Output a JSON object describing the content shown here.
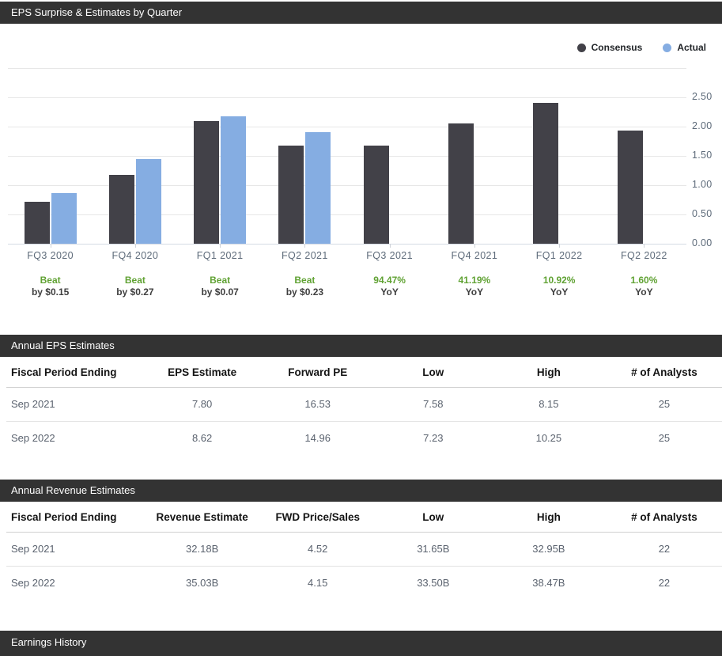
{
  "chart": {
    "section_title": "EPS Surprise & Estimates by Quarter"
  },
  "chart_data": {
    "type": "bar",
    "title": "EPS Surprise & Estimates by Quarter",
    "categories": [
      "FQ3 2020",
      "FQ4 2020",
      "FQ1 2021",
      "FQ2 2021",
      "FQ3 2021",
      "FQ4 2021",
      "FQ1 2022",
      "FQ2 2022"
    ],
    "series": [
      {
        "name": "Consensus",
        "color": "#424148",
        "values": [
          0.71,
          1.18,
          2.1,
          1.67,
          1.67,
          2.05,
          2.41,
          1.93
        ]
      },
      {
        "name": "Actual",
        "color": "#85ade2",
        "values": [
          0.86,
          1.45,
          2.17,
          1.9,
          null,
          null,
          null,
          null
        ]
      }
    ],
    "annotations": [
      {
        "line1": "Beat",
        "line2": "by $0.15"
      },
      {
        "line1": "Beat",
        "line2": "by $0.27"
      },
      {
        "line1": "Beat",
        "line2": "by $0.07"
      },
      {
        "line1": "Beat",
        "line2": "by $0.23"
      },
      {
        "line1": "94.47%",
        "line2": "YoY"
      },
      {
        "line1": "41.19%",
        "line2": "YoY"
      },
      {
        "line1": "10.92%",
        "line2": "YoY"
      },
      {
        "line1": "1.60%",
        "line2": "YoY"
      }
    ],
    "ylim": [
      0,
      3.0
    ],
    "yticks": [
      "2.50",
      "2.00",
      "1.50",
      "1.00",
      "0.50",
      "0.00"
    ],
    "grid": true,
    "legend_position": "top-right"
  },
  "eps_table": {
    "section_title": "Annual EPS Estimates",
    "columns": [
      "Fiscal Period Ending",
      "EPS Estimate",
      "Forward PE",
      "Low",
      "High",
      "# of Analysts"
    ],
    "rows": [
      [
        "Sep 2021",
        "7.80",
        "16.53",
        "7.58",
        "8.15",
        "25"
      ],
      [
        "Sep 2022",
        "8.62",
        "14.96",
        "7.23",
        "10.25",
        "25"
      ]
    ]
  },
  "revenue_table": {
    "section_title": "Annual Revenue Estimates",
    "columns": [
      "Fiscal Period Ending",
      "Revenue Estimate",
      "FWD Price/Sales",
      "Low",
      "High",
      "# of Analysts"
    ],
    "rows": [
      [
        "Sep 2021",
        "32.18B",
        "4.52",
        "31.65B",
        "32.95B",
        "22"
      ],
      [
        "Sep 2022",
        "35.03B",
        "4.15",
        "33.50B",
        "38.47B",
        "22"
      ]
    ]
  },
  "earnings_history": {
    "section_title": "Earnings History"
  },
  "colors": {
    "section_bar_bg": "#333333",
    "consensus": "#424148",
    "actual": "#85ade2",
    "beat_green": "#60a233",
    "annotation_dark": "#3f3f3f",
    "gridline": "#e7e7e7",
    "axis_text": "#5e6b7a",
    "table_header_text": "#141414",
    "table_cell_text": "#5a626e"
  }
}
